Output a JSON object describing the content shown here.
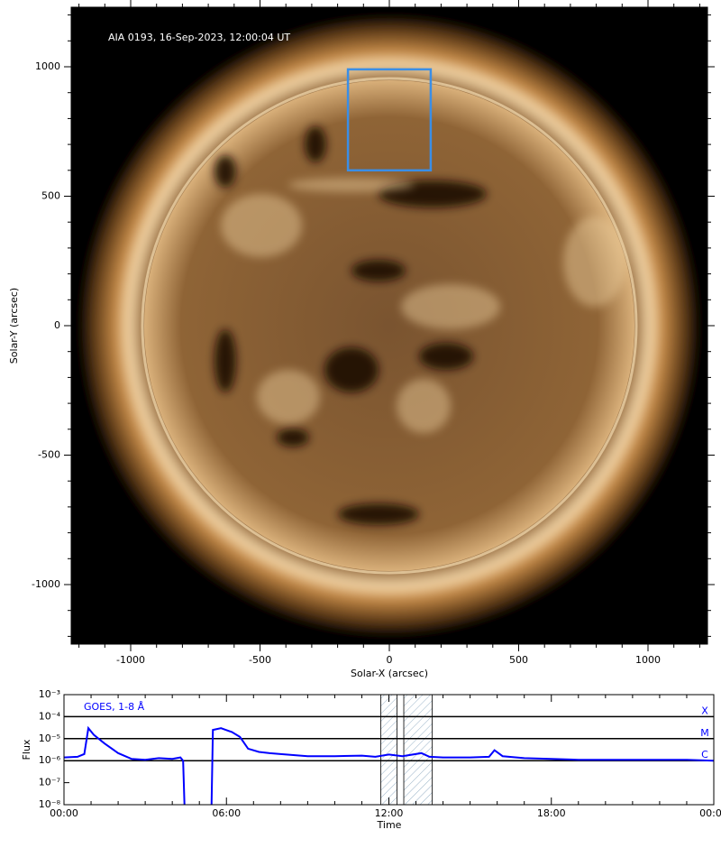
{
  "chart_data": [
    {
      "type": "image",
      "title": "AIA 0193, 16-Sep-2023, 12:00:04 UT",
      "xlabel": "Solar-X (arcsec)",
      "ylabel": "Solar-Y (arcsec)",
      "xlim": [
        -1230,
        1230
      ],
      "ylim": [
        -1230,
        1230
      ],
      "xticks": [
        -1000,
        -500,
        0,
        500,
        1000
      ],
      "yticks": [
        -1000,
        -500,
        0,
        500,
        1000
      ],
      "xminorticks": [
        -1200,
        -1100,
        -900,
        -800,
        -700,
        -600,
        -400,
        -300,
        -200,
        -100,
        100,
        200,
        300,
        400,
        600,
        700,
        800,
        900,
        1100,
        1200
      ],
      "yminorticks": [
        -1200,
        -1100,
        -900,
        -800,
        -700,
        -600,
        -400,
        -300,
        -200,
        -100,
        100,
        200,
        300,
        400,
        600,
        700,
        800,
        900,
        1100,
        1200
      ],
      "box": {
        "xlim": [
          -160,
          160
        ],
        "ylim": [
          600,
          990
        ],
        "color": "#3a8ee6"
      }
    },
    {
      "type": "line",
      "xlabel": "Time",
      "ylabel": "Flux",
      "xlim": [
        0,
        24
      ],
      "ylim": [
        1e-08,
        0.001
      ],
      "yscale": "log",
      "xticks": [
        {
          "value": 0,
          "label": "00:00"
        },
        {
          "value": 6,
          "label": "06:00"
        },
        {
          "value": 12,
          "label": "12:00"
        },
        {
          "value": 18,
          "label": "18:00"
        },
        {
          "value": 24,
          "label": "00:00"
        }
      ],
      "xminorticks": [
        1,
        2,
        3,
        4,
        5,
        7,
        8,
        9,
        10,
        11,
        13,
        14,
        15,
        16,
        17,
        19,
        20,
        21,
        22,
        23
      ],
      "yticks": [
        {
          "value": 1e-08,
          "label": "10⁻⁸"
        },
        {
          "value": 1e-07,
          "label": "10⁻⁷"
        },
        {
          "value": 1e-06,
          "label": "10⁻⁶"
        },
        {
          "value": 1e-05,
          "label": "10⁻⁵"
        },
        {
          "value": 0.0001,
          "label": "10⁻⁴"
        },
        {
          "value": 0.001,
          "label": "10⁻³"
        }
      ],
      "hlines": [
        {
          "value": 0.0001,
          "label": "X"
        },
        {
          "value": 1e-05,
          "label": "M"
        },
        {
          "value": 1e-06,
          "label": "C"
        }
      ],
      "spans": [
        [
          11.7,
          12.3
        ],
        [
          12.55,
          13.6
        ]
      ],
      "x": [
        0,
        0.5,
        0.75,
        0.9,
        1.1,
        1.5,
        2,
        2.5,
        3,
        3.5,
        4,
        4.3,
        4.4,
        4.45,
        4.5,
        5.4,
        5.45,
        5.5,
        5.8,
        6.2,
        6.5,
        6.8,
        7.2,
        7.6,
        8,
        9,
        10,
        11,
        11.5,
        12,
        12.5,
        13.2,
        13.5,
        14,
        15,
        15.7,
        15.9,
        16.2,
        17,
        18,
        19,
        20,
        21,
        22,
        23,
        24
      ],
      "series": [
        {
          "name": "GOES, 1-8 Å",
          "color": "#0000ff",
          "values": [
            1.4e-06,
            1.5e-06,
            2e-06,
            3e-05,
            1.5e-05,
            6e-06,
            2.2e-06,
            1.2e-06,
            1.1e-06,
            1.3e-06,
            1.2e-06,
            1.4e-06,
            1e-06,
            1e-08,
            null,
            null,
            1e-08,
            2.5e-05,
            3e-05,
            2e-05,
            1.2e-05,
            3.5e-06,
            2.5e-06,
            2.2e-06,
            2e-06,
            1.6e-06,
            1.6e-06,
            1.7e-06,
            1.5e-06,
            1.9e-06,
            1.6e-06,
            2.2e-06,
            1.5e-06,
            1.4e-06,
            1.4e-06,
            1.5e-06,
            3e-06,
            1.6e-06,
            1.3e-06,
            1.2e-06,
            1.1e-06,
            1.1e-06,
            1.1e-06,
            1.1e-06,
            1.1e-06,
            1e-06
          ]
        }
      ]
    }
  ]
}
